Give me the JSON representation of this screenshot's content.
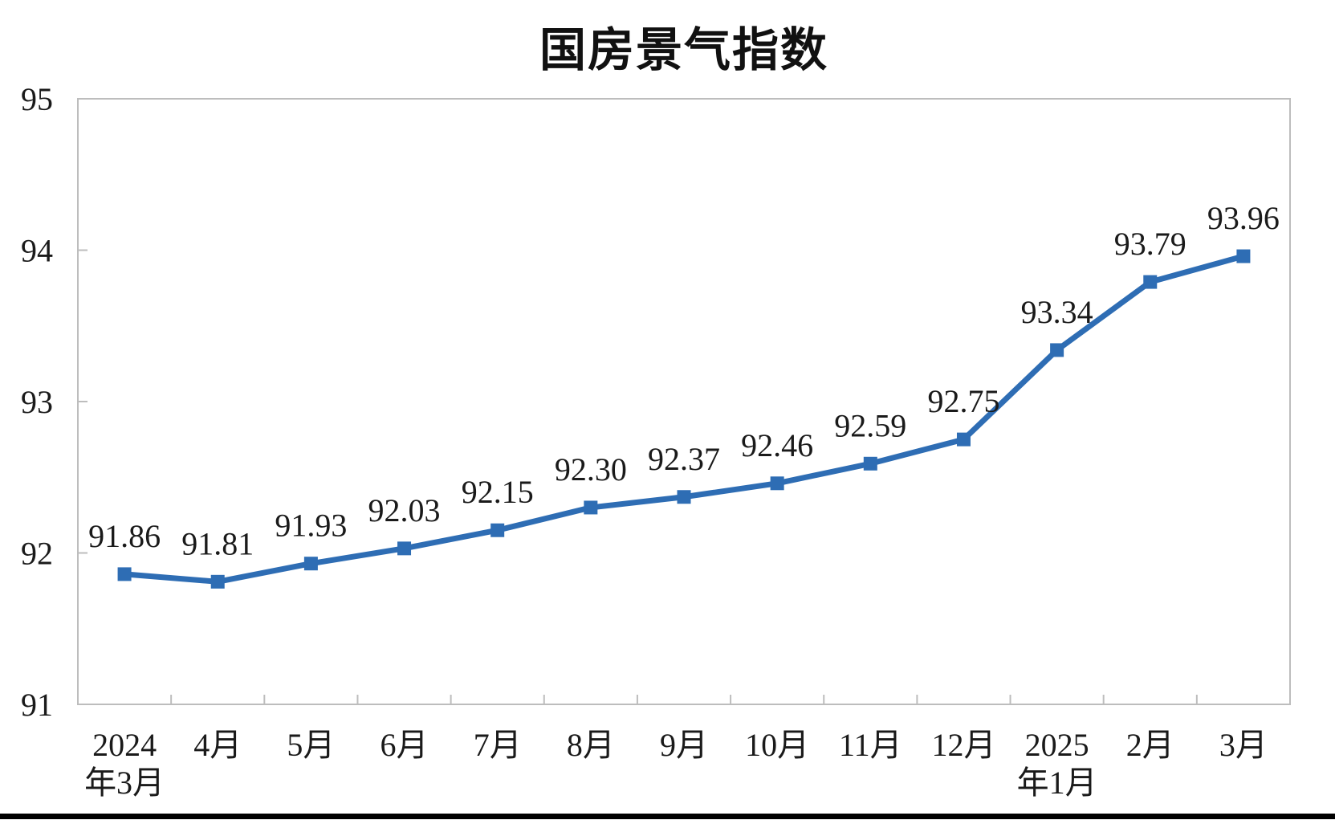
{
  "page": {
    "background_color": "#ffffff",
    "bottom_bar_color": "#000000"
  },
  "chart_data": {
    "type": "line",
    "title": "国房景气指数",
    "categories": [
      "2024年3月",
      "4月",
      "5月",
      "6月",
      "7月",
      "8月",
      "9月",
      "10月",
      "11月",
      "12月",
      "2025年1月",
      "2月",
      "3月"
    ],
    "x_tick_lines": [
      [
        "2024",
        "年3月"
      ],
      [
        "4月"
      ],
      [
        "5月"
      ],
      [
        "6月"
      ],
      [
        "7月"
      ],
      [
        "8月"
      ],
      [
        "9月"
      ],
      [
        "10月"
      ],
      [
        "11月"
      ],
      [
        "12月"
      ],
      [
        "2025",
        "年1月"
      ],
      [
        "2月"
      ],
      [
        "3月"
      ]
    ],
    "values": [
      91.86,
      91.81,
      91.93,
      92.03,
      92.15,
      92.3,
      92.37,
      92.46,
      92.59,
      92.75,
      93.34,
      93.79,
      93.96
    ],
    "data_labels": [
      "91.86",
      "91.81",
      "91.93",
      "92.03",
      "92.15",
      "92.30",
      "92.37",
      "92.46",
      "92.59",
      "92.75",
      "93.34",
      "93.79",
      "93.96"
    ],
    "series_name": "国房景气指数",
    "xlabel": "",
    "ylabel": "",
    "ylim": [
      91,
      95
    ],
    "y_ticks": [
      91,
      92,
      93,
      94,
      95
    ],
    "y_tick_labels": [
      "91",
      "92",
      "93",
      "94",
      "95"
    ],
    "grid": false,
    "legend": false,
    "legend_position": "none",
    "marker": "square",
    "line_color": "#2E6DB4",
    "marker_color": "#2E6DB4",
    "axis_frame_color": "#BDBDBD",
    "text_color": "#1a1a1a"
  }
}
